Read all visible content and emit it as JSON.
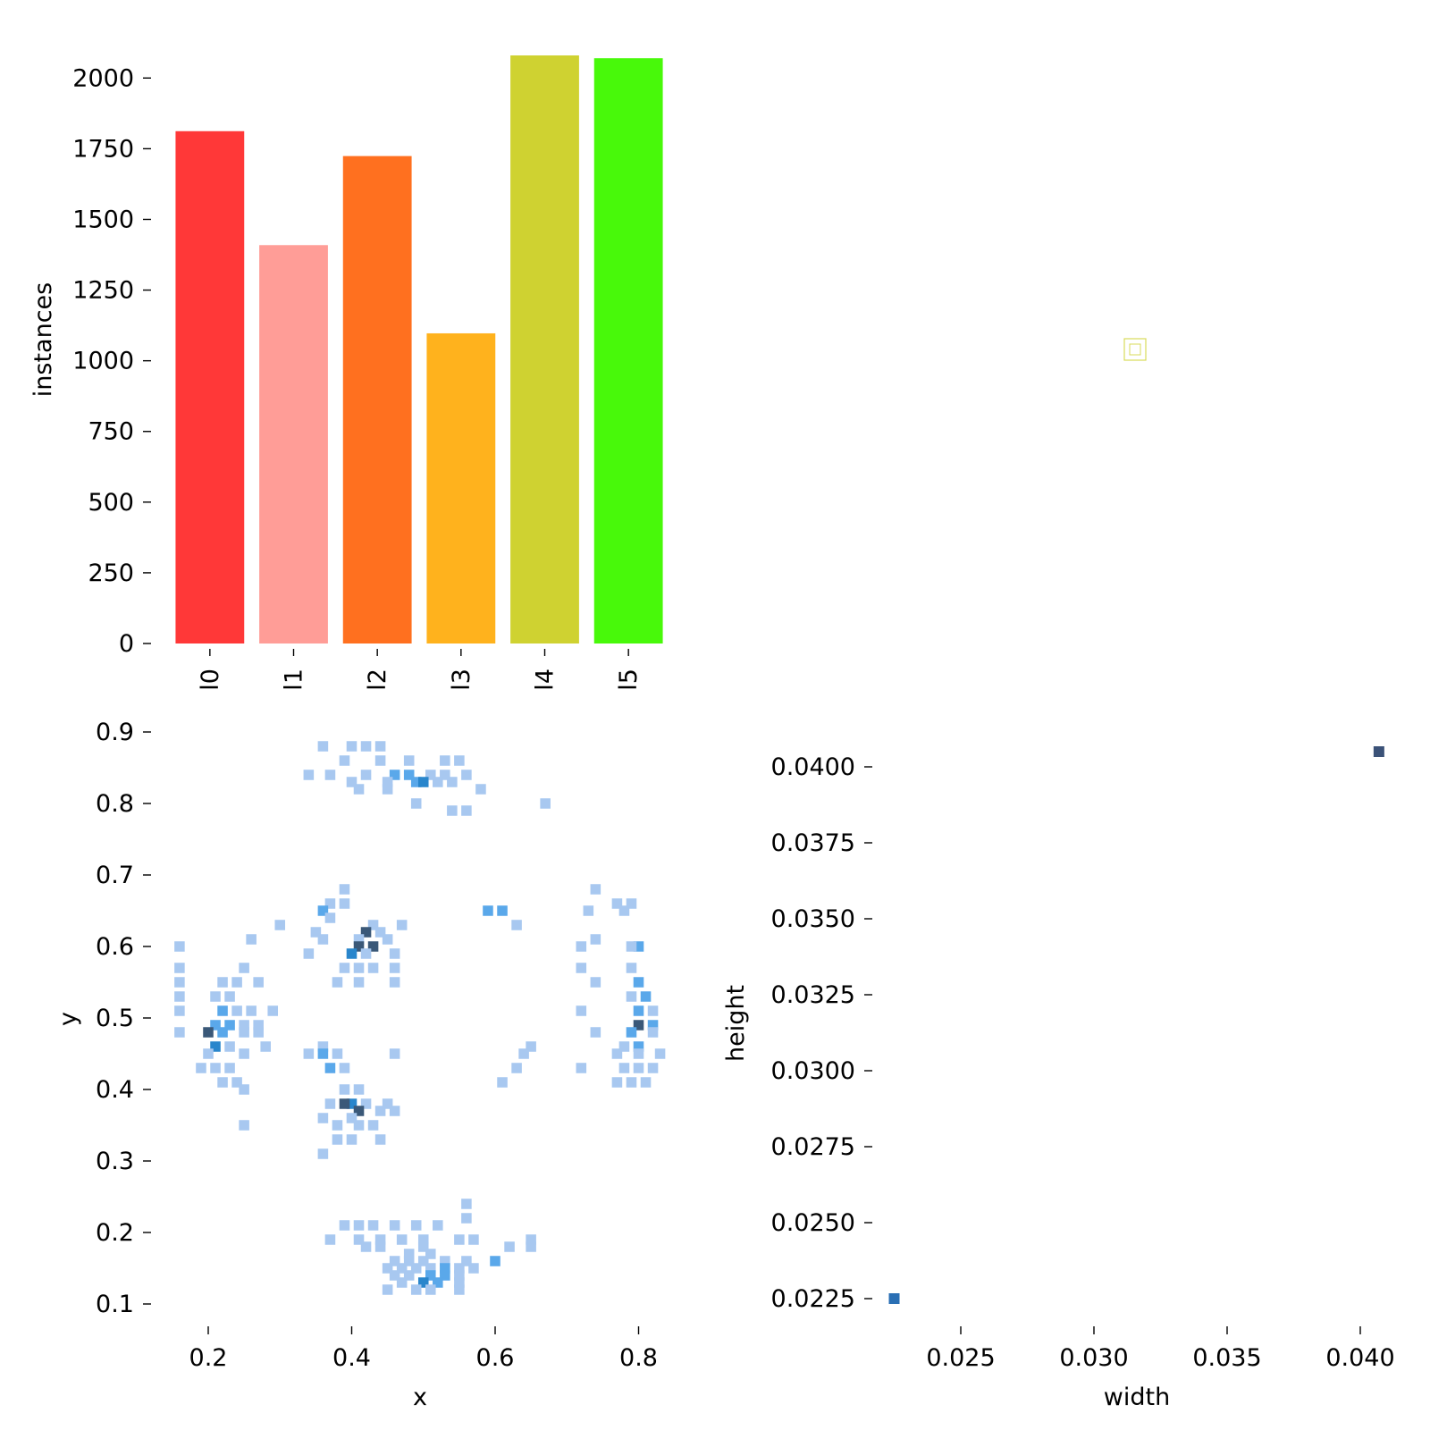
{
  "chart_data": [
    {
      "type": "bar",
      "categories": [
        "l0",
        "l1",
        "l2",
        "l3",
        "l4",
        "l5"
      ],
      "values": [
        1812,
        1409,
        1724,
        1097,
        2080,
        2070
      ],
      "colors": [
        "#ff3838",
        "#ff9d97",
        "#ff701f",
        "#ffb21d",
        "#cfd231",
        "#48f90a"
      ],
      "ylabel": "instances",
      "yticks": [
        0,
        250,
        500,
        750,
        1000,
        1250,
        1500,
        1750,
        2000
      ],
      "ylim": [
        0,
        2080
      ]
    },
    {
      "type": "scatter",
      "x": [
        0.0315
      ],
      "y": [
        0.0315
      ],
      "color": "#cfd231",
      "note_marker": "hollow square"
    },
    {
      "type": "heatmap",
      "xlabel": "x",
      "ylabel": "y",
      "xticks": [
        0.2,
        0.4,
        0.6,
        0.8
      ],
      "yticks": [
        0.1,
        0.2,
        0.3,
        0.4,
        0.5,
        0.6,
        0.7,
        0.8,
        0.9
      ],
      "xlim": [
        0.145,
        0.855
      ],
      "ylim": [
        0.075,
        0.925
      ],
      "bin_size": 0.02,
      "colors": [
        "#a8c8f0",
        "#5aa8ea",
        "#2986cc",
        "#3a5878"
      ],
      "cells": [
        [
          0.36,
          0.88,
          0
        ],
        [
          0.4,
          0.88,
          0
        ],
        [
          0.42,
          0.88,
          0
        ],
        [
          0.44,
          0.88,
          0
        ],
        [
          0.39,
          0.86,
          0
        ],
        [
          0.44,
          0.86,
          0
        ],
        [
          0.48,
          0.86,
          0
        ],
        [
          0.53,
          0.86,
          0
        ],
        [
          0.55,
          0.86,
          0
        ],
        [
          0.34,
          0.84,
          0
        ],
        [
          0.37,
          0.84,
          0
        ],
        [
          0.42,
          0.84,
          0
        ],
        [
          0.46,
          0.84,
          1
        ],
        [
          0.48,
          0.84,
          1
        ],
        [
          0.51,
          0.84,
          0
        ],
        [
          0.53,
          0.84,
          0
        ],
        [
          0.56,
          0.84,
          0
        ],
        [
          0.4,
          0.83,
          0
        ],
        [
          0.45,
          0.83,
          0
        ],
        [
          0.49,
          0.83,
          1
        ],
        [
          0.5,
          0.83,
          2
        ],
        [
          0.52,
          0.83,
          0
        ],
        [
          0.54,
          0.83,
          0
        ],
        [
          0.41,
          0.82,
          0
        ],
        [
          0.45,
          0.82,
          0
        ],
        [
          0.58,
          0.82,
          0
        ],
        [
          0.49,
          0.8,
          0
        ],
        [
          0.67,
          0.8,
          0
        ],
        [
          0.54,
          0.79,
          0
        ],
        [
          0.56,
          0.79,
          0
        ],
        [
          0.39,
          0.68,
          0
        ],
        [
          0.74,
          0.68,
          0
        ],
        [
          0.37,
          0.66,
          0
        ],
        [
          0.39,
          0.66,
          0
        ],
        [
          0.77,
          0.66,
          0
        ],
        [
          0.79,
          0.66,
          0
        ],
        [
          0.36,
          0.65,
          1
        ],
        [
          0.59,
          0.65,
          1
        ],
        [
          0.61,
          0.65,
          1
        ],
        [
          0.73,
          0.65,
          0
        ],
        [
          0.78,
          0.65,
          0
        ],
        [
          0.37,
          0.64,
          0
        ],
        [
          0.3,
          0.63,
          0
        ],
        [
          0.43,
          0.63,
          0
        ],
        [
          0.47,
          0.63,
          0
        ],
        [
          0.63,
          0.63,
          0
        ],
        [
          0.35,
          0.62,
          0
        ],
        [
          0.42,
          0.62,
          3
        ],
        [
          0.44,
          0.62,
          0
        ],
        [
          0.26,
          0.61,
          0
        ],
        [
          0.36,
          0.61,
          0
        ],
        [
          0.41,
          0.61,
          0
        ],
        [
          0.45,
          0.61,
          0
        ],
        [
          0.74,
          0.61,
          0
        ],
        [
          0.41,
          0.6,
          3
        ],
        [
          0.43,
          0.6,
          3
        ],
        [
          0.16,
          0.6,
          0
        ],
        [
          0.8,
          0.6,
          1
        ],
        [
          0.79,
          0.6,
          0
        ],
        [
          0.72,
          0.6,
          0
        ],
        [
          0.34,
          0.59,
          0
        ],
        [
          0.4,
          0.59,
          2
        ],
        [
          0.42,
          0.59,
          0
        ],
        [
          0.46,
          0.59,
          0
        ],
        [
          0.16,
          0.57,
          0
        ],
        [
          0.25,
          0.57,
          0
        ],
        [
          0.39,
          0.57,
          0
        ],
        [
          0.41,
          0.57,
          0
        ],
        [
          0.43,
          0.57,
          0
        ],
        [
          0.46,
          0.57,
          0
        ],
        [
          0.72,
          0.57,
          0
        ],
        [
          0.79,
          0.57,
          0
        ],
        [
          0.16,
          0.55,
          0
        ],
        [
          0.22,
          0.55,
          0
        ],
        [
          0.24,
          0.55,
          0
        ],
        [
          0.27,
          0.55,
          0
        ],
        [
          0.38,
          0.55,
          0
        ],
        [
          0.41,
          0.55,
          0
        ],
        [
          0.46,
          0.55,
          0
        ],
        [
          0.74,
          0.55,
          0
        ],
        [
          0.8,
          0.55,
          1
        ],
        [
          0.16,
          0.53,
          0
        ],
        [
          0.21,
          0.53,
          0
        ],
        [
          0.23,
          0.53,
          0
        ],
        [
          0.79,
          0.53,
          0
        ],
        [
          0.81,
          0.53,
          1
        ],
        [
          0.16,
          0.51,
          0
        ],
        [
          0.22,
          0.51,
          1
        ],
        [
          0.24,
          0.51,
          0
        ],
        [
          0.26,
          0.51,
          0
        ],
        [
          0.29,
          0.51,
          0
        ],
        [
          0.72,
          0.51,
          0
        ],
        [
          0.8,
          0.51,
          1
        ],
        [
          0.82,
          0.51,
          0
        ],
        [
          0.21,
          0.49,
          1
        ],
        [
          0.23,
          0.49,
          1
        ],
        [
          0.25,
          0.49,
          0
        ],
        [
          0.27,
          0.49,
          0
        ],
        [
          0.8,
          0.49,
          3
        ],
        [
          0.82,
          0.49,
          1
        ],
        [
          0.16,
          0.48,
          0
        ],
        [
          0.2,
          0.48,
          3
        ],
        [
          0.22,
          0.48,
          1
        ],
        [
          0.25,
          0.48,
          0
        ],
        [
          0.27,
          0.48,
          0
        ],
        [
          0.74,
          0.48,
          0
        ],
        [
          0.79,
          0.48,
          1
        ],
        [
          0.82,
          0.48,
          0
        ],
        [
          0.21,
          0.46,
          2
        ],
        [
          0.23,
          0.46,
          0
        ],
        [
          0.28,
          0.46,
          0
        ],
        [
          0.36,
          0.46,
          0
        ],
        [
          0.65,
          0.46,
          0
        ],
        [
          0.78,
          0.46,
          0
        ],
        [
          0.8,
          0.46,
          1
        ],
        [
          0.2,
          0.45,
          0
        ],
        [
          0.25,
          0.45,
          0
        ],
        [
          0.34,
          0.45,
          0
        ],
        [
          0.36,
          0.45,
          1
        ],
        [
          0.38,
          0.45,
          0
        ],
        [
          0.46,
          0.45,
          0
        ],
        [
          0.64,
          0.45,
          0
        ],
        [
          0.77,
          0.45,
          0
        ],
        [
          0.8,
          0.45,
          0
        ],
        [
          0.83,
          0.45,
          0
        ],
        [
          0.19,
          0.43,
          0
        ],
        [
          0.21,
          0.43,
          0
        ],
        [
          0.23,
          0.43,
          0
        ],
        [
          0.37,
          0.43,
          1
        ],
        [
          0.39,
          0.43,
          0
        ],
        [
          0.63,
          0.43,
          0
        ],
        [
          0.72,
          0.43,
          0
        ],
        [
          0.78,
          0.43,
          0
        ],
        [
          0.8,
          0.43,
          0
        ],
        [
          0.82,
          0.43,
          0
        ],
        [
          0.22,
          0.41,
          0
        ],
        [
          0.24,
          0.41,
          0
        ],
        [
          0.61,
          0.41,
          0
        ],
        [
          0.77,
          0.41,
          0
        ],
        [
          0.79,
          0.41,
          0
        ],
        [
          0.81,
          0.41,
          0
        ],
        [
          0.25,
          0.4,
          0
        ],
        [
          0.39,
          0.4,
          0
        ],
        [
          0.41,
          0.4,
          0
        ],
        [
          0.4,
          0.38,
          2
        ],
        [
          0.42,
          0.38,
          0
        ],
        [
          0.45,
          0.38,
          0
        ],
        [
          0.39,
          0.38,
          3
        ],
        [
          0.37,
          0.38,
          0
        ],
        [
          0.41,
          0.37,
          3
        ],
        [
          0.44,
          0.37,
          0
        ],
        [
          0.46,
          0.37,
          0
        ],
        [
          0.36,
          0.36,
          0
        ],
        [
          0.4,
          0.36,
          0
        ],
        [
          0.38,
          0.35,
          0
        ],
        [
          0.41,
          0.35,
          0
        ],
        [
          0.43,
          0.35,
          0
        ],
        [
          0.25,
          0.35,
          0
        ],
        [
          0.38,
          0.33,
          0
        ],
        [
          0.4,
          0.33,
          0
        ],
        [
          0.44,
          0.33,
          0
        ],
        [
          0.36,
          0.31,
          0
        ],
        [
          0.56,
          0.24,
          0
        ],
        [
          0.56,
          0.22,
          0
        ],
        [
          0.39,
          0.21,
          0
        ],
        [
          0.41,
          0.21,
          0
        ],
        [
          0.43,
          0.21,
          0
        ],
        [
          0.46,
          0.21,
          0
        ],
        [
          0.49,
          0.21,
          0
        ],
        [
          0.52,
          0.21,
          0
        ],
        [
          0.37,
          0.19,
          0
        ],
        [
          0.41,
          0.19,
          0
        ],
        [
          0.44,
          0.19,
          0
        ],
        [
          0.47,
          0.19,
          0
        ],
        [
          0.5,
          0.19,
          0
        ],
        [
          0.55,
          0.19,
          0
        ],
        [
          0.57,
          0.19,
          0
        ],
        [
          0.65,
          0.19,
          0
        ],
        [
          0.42,
          0.18,
          0
        ],
        [
          0.44,
          0.18,
          0
        ],
        [
          0.5,
          0.18,
          0
        ],
        [
          0.62,
          0.18,
          0
        ],
        [
          0.65,
          0.18,
          0
        ],
        [
          0.48,
          0.17,
          0
        ],
        [
          0.51,
          0.17,
          0
        ],
        [
          0.46,
          0.16,
          0
        ],
        [
          0.48,
          0.16,
          0
        ],
        [
          0.5,
          0.16,
          0
        ],
        [
          0.53,
          0.16,
          0
        ],
        [
          0.56,
          0.16,
          0
        ],
        [
          0.6,
          0.16,
          1
        ],
        [
          0.45,
          0.15,
          0
        ],
        [
          0.47,
          0.15,
          0
        ],
        [
          0.49,
          0.15,
          0
        ],
        [
          0.51,
          0.15,
          0
        ],
        [
          0.53,
          0.15,
          1
        ],
        [
          0.55,
          0.15,
          0
        ],
        [
          0.57,
          0.15,
          0
        ],
        [
          0.46,
          0.14,
          0
        ],
        [
          0.48,
          0.14,
          0
        ],
        [
          0.51,
          0.14,
          1
        ],
        [
          0.53,
          0.14,
          1
        ],
        [
          0.55,
          0.14,
          0
        ],
        [
          0.47,
          0.13,
          0
        ],
        [
          0.5,
          0.13,
          2
        ],
        [
          0.52,
          0.13,
          1
        ],
        [
          0.55,
          0.13,
          0
        ],
        [
          0.45,
          0.12,
          0
        ],
        [
          0.49,
          0.12,
          0
        ],
        [
          0.51,
          0.12,
          0
        ],
        [
          0.55,
          0.12,
          0
        ]
      ]
    },
    {
      "type": "heatmap",
      "xlabel": "width",
      "ylabel": "height",
      "xticks": [
        "0.025",
        "0.030",
        "0.035",
        "0.040"
      ],
      "yticks": [
        "0.0225",
        "0.0250",
        "0.0275",
        "0.0300",
        "0.0325",
        "0.0350",
        "0.0375",
        "0.0400"
      ],
      "xlim": [
        0.0215,
        0.0415
      ],
      "ylim": [
        0.0215,
        0.0415
      ],
      "points": [
        {
          "x": 0.0225,
          "y": 0.0225,
          "color": "#2a6fb4"
        },
        {
          "x": 0.0407,
          "y": 0.0405,
          "color": "#3b5278"
        }
      ]
    }
  ]
}
